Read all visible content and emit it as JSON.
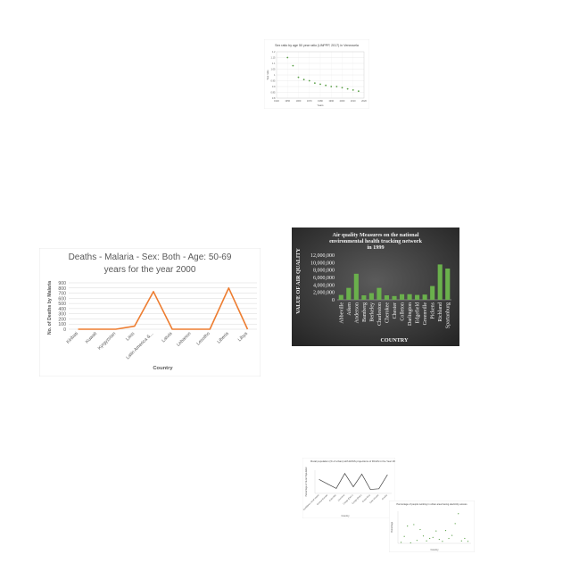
{
  "chart_data": [
    {
      "type": "scatter",
      "title": "Sex ratio by age 50 year ratio (UNPPP, 2017) in Venezuela",
      "xlabel": "Years",
      "ylabel": "Sex ratio",
      "x": [
        1950,
        1955,
        1960,
        1965,
        1970,
        1975,
        1980,
        1985,
        1990,
        1995,
        2000,
        2005,
        2010,
        2015
      ],
      "y": [
        1.15,
        1.08,
        0.98,
        0.96,
        0.95,
        0.93,
        0.92,
        0.91,
        0.9,
        0.9,
        0.89,
        0.88,
        0.87,
        0.86
      ],
      "xticks": [
        "1940",
        "1950",
        "1960",
        "1970",
        "1980",
        "1990",
        "2000",
        "2010",
        "2020"
      ],
      "yticks": [
        "0.8",
        "0.85",
        "0.9",
        "0.95",
        "1",
        "1.05",
        "1.1",
        "1.15",
        "1.2"
      ],
      "xlim": [
        1940,
        2020
      ],
      "ylim": [
        0.8,
        1.2
      ],
      "color": "#5aa047",
      "grid": true
    },
    {
      "type": "line",
      "title_line1": "Deaths - Malaria - Sex: Both - Age: 50-69",
      "title_line2": "years for the year 2000",
      "xlabel": "Country",
      "ylabel": "No. of Deaths by Malaria",
      "categories": [
        "Kiribati",
        "Kuwait",
        "Kyrgyzstan",
        "Laos",
        "Latin America &...",
        "Latvia",
        "Lebanon",
        "Lesotho",
        "Liberia",
        "Libya"
      ],
      "values": [
        0,
        0,
        0,
        60,
        730,
        0,
        0,
        0,
        800,
        0
      ],
      "yticks": [
        "0",
        "100",
        "200",
        "300",
        "400",
        "500",
        "600",
        "700",
        "800",
        "900"
      ],
      "ylim": [
        0,
        900
      ],
      "color": "#ed7d31",
      "grid": true
    },
    {
      "type": "bar",
      "title_line1": "Air quality Measures on the national",
      "title_line2": "environmental health tracking network",
      "title_line3": "in 1999",
      "xlabel": "COUNTRY",
      "ylabel": "VALUE OF AIR QUALITY",
      "categories": [
        "Abbeville",
        "Aiken",
        "Anderson",
        "Bamberg",
        "Berkeley",
        "Charleston",
        "Cherokee",
        "Chester",
        "Colleton",
        "Darlington",
        "Edgefield",
        "Greenville",
        "Pickens",
        "Richland",
        "Spartanburg"
      ],
      "values": [
        1300000,
        3200000,
        7000000,
        1200000,
        1800000,
        3200000,
        1200000,
        1000000,
        1500000,
        1500000,
        1300000,
        1400000,
        3700000,
        9500000,
        8400000
      ],
      "yticks": [
        "0",
        "2,000,000",
        "4,000,000",
        "6,000,000",
        "8,000,000",
        "10,000,000",
        "12,000,000"
      ],
      "ylim": [
        0,
        12000000
      ],
      "color": "#6ab04c"
    },
    {
      "type": "line",
      "title": "Rural population (% of urban) with ESSS projections of RCHS in the Year 1990",
      "xlabel": "Country",
      "ylabel": "Percentage of Rural Population",
      "categories": [
        "Caribbean small states",
        "Central Europe",
        "Colombia",
        "Comoros",
        "Congo (Dem.)",
        "Congo (Rep.)",
        "Costa Rica",
        "Cote d'Ivoire",
        "Croatia"
      ],
      "values": [
        72,
        58,
        45,
        90,
        50,
        88,
        42,
        44,
        86
      ],
      "color": "#404040"
    },
    {
      "type": "scatter",
      "title": "Percentage of people working in urban area having electricity access",
      "xlabel": "Country",
      "ylabel": "Percentage",
      "x": [
        1,
        2,
        3,
        4,
        5,
        6,
        7,
        8,
        9,
        10,
        11,
        12,
        13,
        14,
        15,
        16,
        17,
        18,
        19,
        20,
        21,
        22
      ],
      "y": [
        2,
        14,
        35,
        1,
        38,
        6,
        28,
        15,
        5,
        10,
        12,
        25,
        8,
        4,
        26,
        10,
        16,
        40,
        60,
        5,
        10,
        4
      ],
      "color": "#5aa047"
    }
  ]
}
